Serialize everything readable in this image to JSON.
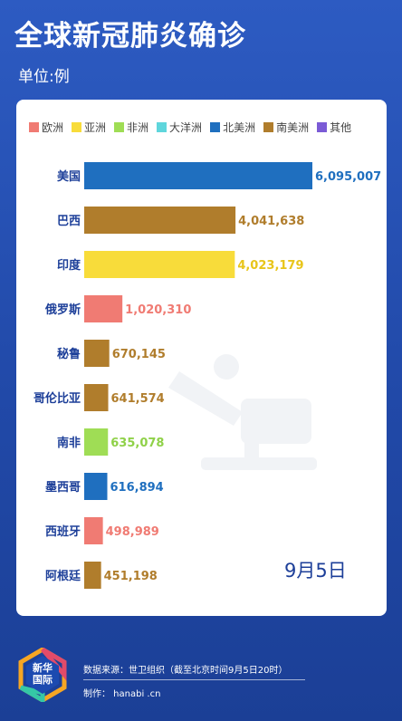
{
  "header": {
    "title": "全球新冠肺炎确诊",
    "unit": "单位:例"
  },
  "legend": [
    {
      "label": "欧洲",
      "color": "#f07b73"
    },
    {
      "label": "亚洲",
      "color": "#f8dc3a"
    },
    {
      "label": "非洲",
      "color": "#9fdd55"
    },
    {
      "label": "大洋洲",
      "color": "#5fd6dc"
    },
    {
      "label": "北美洲",
      "color": "#1f6fbf"
    },
    {
      "label": "南美洲",
      "color": "#b07d2c"
    },
    {
      "label": "其他",
      "color": "#7b5bd6"
    }
  ],
  "date": "9月5日",
  "footer": {
    "logo": "新华\n国际",
    "source": "数据来源：世卫组织（截至北京时间9月5日20时）",
    "maker": "制作： hanabi .cn"
  },
  "chart_data": {
    "type": "bar",
    "orientation": "horizontal",
    "categories": [
      "美国",
      "巴西",
      "印度",
      "俄罗斯",
      "秘鲁",
      "哥伦比亚",
      "南非",
      "墨西哥",
      "西班牙",
      "阿根廷"
    ],
    "values": [
      6095007,
      4041638,
      4023179,
      1020310,
      670145,
      641574,
      635078,
      616894,
      498989,
      451198
    ],
    "value_labels": [
      "6,095,007",
      "4,041,638",
      "4,023,179",
      "1,020,310",
      "670,145",
      "641,574",
      "635,078",
      "616,894",
      "498,989",
      "451,198"
    ],
    "regions": [
      "北美洲",
      "南美洲",
      "亚洲",
      "欧洲",
      "南美洲",
      "南美洲",
      "非洲",
      "北美洲",
      "欧洲",
      "南美洲"
    ],
    "colors": [
      "#1f6fbf",
      "#b07d2c",
      "#f8dc3a",
      "#f07b73",
      "#b07d2c",
      "#b07d2c",
      "#9fdd55",
      "#1f6fbf",
      "#f07b73",
      "#b07d2c"
    ],
    "label_colors": [
      "#1f6fbf",
      "#b07d2c",
      "#e8c51a",
      "#f07b73",
      "#b07d2c",
      "#b07d2c",
      "#8fd148",
      "#1f6fbf",
      "#f07b73",
      "#b07d2c"
    ],
    "xlim": [
      0,
      6095007
    ],
    "legend_position": "top",
    "grid": false
  }
}
